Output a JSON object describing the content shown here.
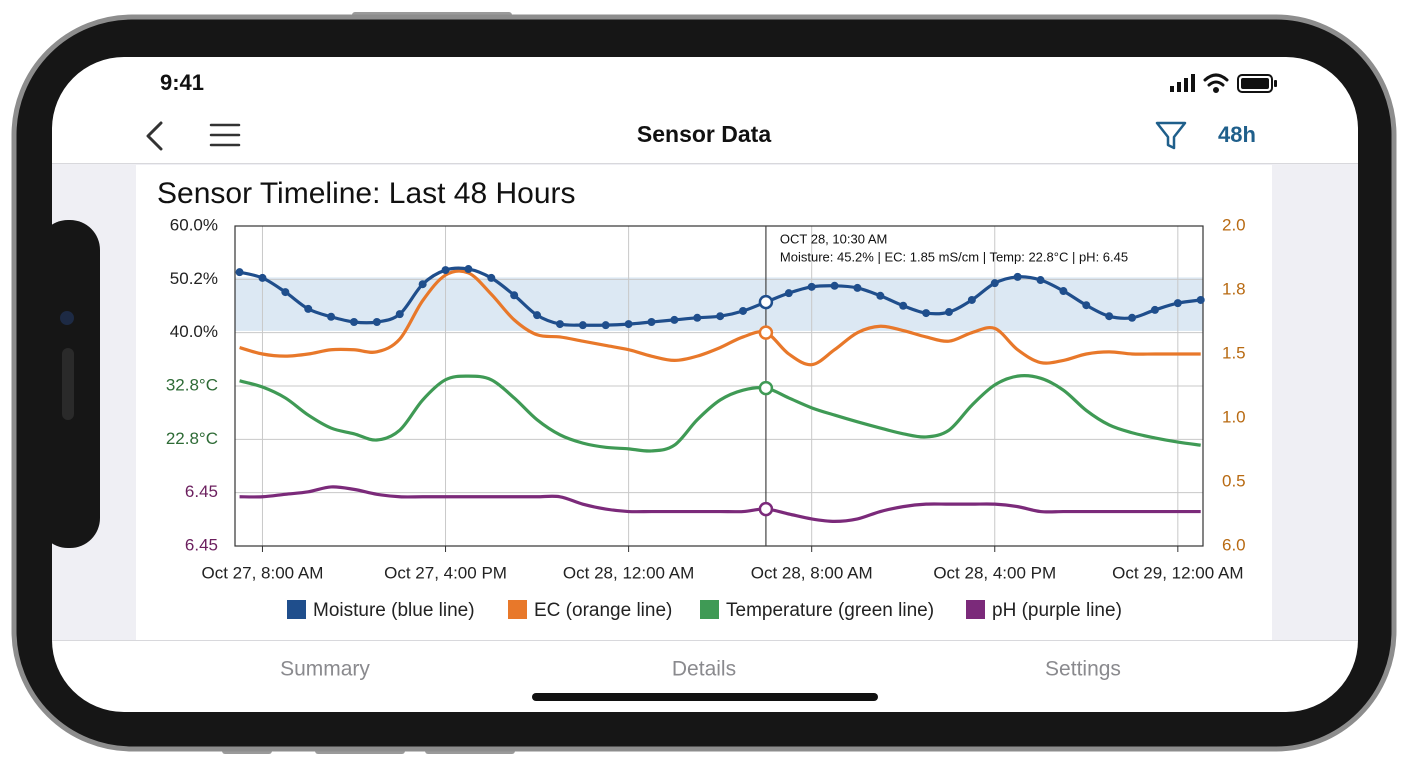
{
  "status_bar": {
    "time": "9:41"
  },
  "nav_bar": {
    "title": "Sensor Data",
    "range_button": "48h"
  },
  "chart_data": {
    "type": "line",
    "title": "Sensor Timeline: Last 48 Hours",
    "y_axis_labels": [
      "60.0%",
      "50.2%",
      "40.0%",
      "32.8°C",
      "22.8°C",
      "6.45",
      "6.45"
    ],
    "y2_axis_labels": [
      "2.0",
      "1.8",
      "1.5",
      "1.0",
      "0.5",
      "6.0"
    ],
    "xlim": [
      6.8,
      49.1
    ],
    "xticks": [
      {
        "value": 8,
        "label": "Oct 27, 8:00 AM"
      },
      {
        "value": 16,
        "label": "Oct 27, 4:00 PM"
      },
      {
        "value": 24,
        "label": "Oct 28, 12:00 AM"
      },
      {
        "value": 32,
        "label": "Oct 28, 8:00 AM"
      },
      {
        "value": 40,
        "label": "Oct 28, 4:00 PM"
      },
      {
        "value": 48,
        "label": "Oct 29, 12:00 AM"
      }
    ],
    "grid": true,
    "moisture_band": [
      40,
      50.2
    ],
    "x": [
      7,
      8,
      9,
      10,
      11,
      12,
      13,
      14,
      15,
      16,
      17,
      18,
      19,
      20,
      21,
      22,
      23,
      24,
      25,
      26,
      27,
      28,
      29,
      30,
      31,
      32,
      33,
      34,
      35,
      36,
      37,
      38,
      39,
      40,
      41,
      42,
      43,
      44,
      45,
      46,
      47,
      48,
      49
    ],
    "series": [
      {
        "name": "Moisture (blue line)",
        "color": "#1f4e8c",
        "markers": true,
        "ylim": [
          -1,
          60
        ],
        "values": [
          51.2,
          50.1,
          47.4,
          44.2,
          42.7,
          41.7,
          41.7,
          43.2,
          48.9,
          51.6,
          51.8,
          50.1,
          46.8,
          43.0,
          41.3,
          41.1,
          41.1,
          41.3,
          41.7,
          42.1,
          42.5,
          42.8,
          43.8,
          45.5,
          47.2,
          48.4,
          48.6,
          48.2,
          46.7,
          44.8,
          43.4,
          43.6,
          45.9,
          49.1,
          50.3,
          49.7,
          47.6,
          44.9,
          42.8,
          42.5,
          44.0,
          45.3,
          45.9
        ]
      },
      {
        "name": "EC (orange line)",
        "color": "#e8782a",
        "markers": false,
        "ylim": [
          0.5,
          2.0
        ],
        "values": [
          1.43,
          1.4,
          1.39,
          1.4,
          1.42,
          1.42,
          1.41,
          1.47,
          1.65,
          1.77,
          1.78,
          1.68,
          1.56,
          1.49,
          1.48,
          1.46,
          1.44,
          1.42,
          1.39,
          1.37,
          1.39,
          1.43,
          1.48,
          1.5,
          1.4,
          1.35,
          1.42,
          1.5,
          1.53,
          1.51,
          1.48,
          1.46,
          1.5,
          1.52,
          1.42,
          1.36,
          1.37,
          1.4,
          1.41,
          1.4,
          1.4,
          1.4,
          1.4
        ]
      },
      {
        "name": "Temperature (green line)",
        "color": "#3f9a55",
        "markers": false,
        "ylim": [
          1.6,
          63.2
        ],
        "values": [
          33.4,
          32.2,
          30.1,
          26.8,
          24.3,
          23.2,
          22.0,
          23.9,
          29.7,
          33.6,
          34.3,
          33.6,
          30.1,
          25.9,
          23.0,
          21.4,
          20.6,
          20.3,
          19.9,
          21.0,
          25.9,
          29.7,
          31.6,
          32.0,
          30.1,
          28.2,
          26.8,
          25.5,
          24.3,
          23.2,
          22.6,
          23.9,
          28.7,
          32.6,
          34.3,
          33.9,
          31.6,
          27.7,
          24.9,
          23.4,
          22.4,
          21.6,
          21.0
        ]
      },
      {
        "name": "pH (purple line)",
        "color": "#7b2a7a",
        "markers": false,
        "ylim": [
          6.3,
          7.6
        ],
        "values": [
          6.5,
          6.5,
          6.51,
          6.52,
          6.54,
          6.53,
          6.51,
          6.5,
          6.5,
          6.5,
          6.5,
          6.5,
          6.5,
          6.5,
          6.5,
          6.47,
          6.45,
          6.44,
          6.44,
          6.44,
          6.44,
          6.44,
          6.44,
          6.45,
          6.43,
          6.41,
          6.4,
          6.41,
          6.44,
          6.46,
          6.47,
          6.47,
          6.47,
          6.47,
          6.46,
          6.44,
          6.44,
          6.44,
          6.44,
          6.44,
          6.44,
          6.44,
          6.44
        ]
      }
    ],
    "tooltip": {
      "time": "OCT 28, 10:30 AM",
      "text": "Moisture: 45.2% | EC: 1.85 mS/cm | Temp: 22.8°C | pH: 6.45"
    }
  },
  "tab_bar": {
    "tabs": [
      "Summary",
      "Details",
      "Settings"
    ]
  }
}
